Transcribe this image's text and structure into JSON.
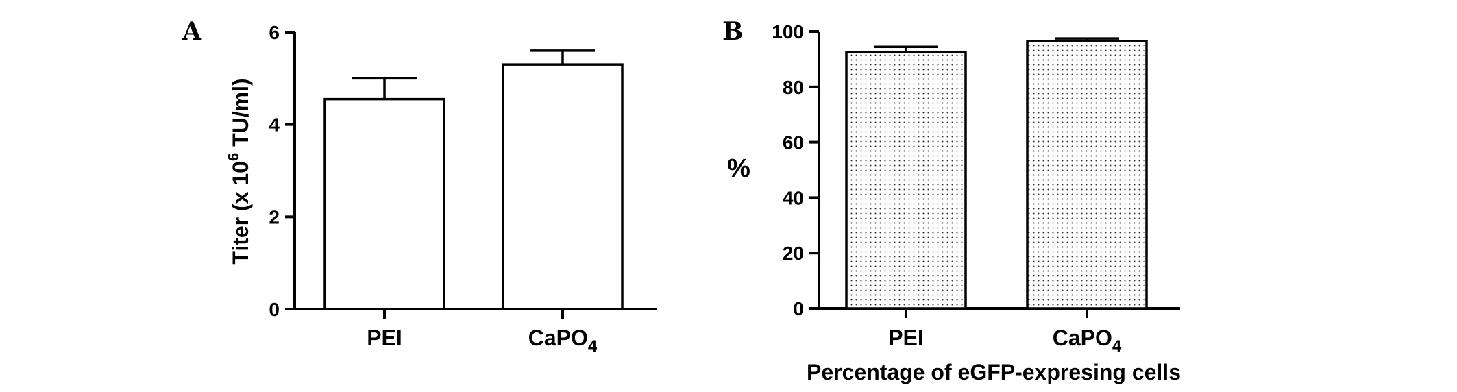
{
  "chart_data": [
    {
      "type": "bar",
      "panel_label": "A",
      "categories": [
        "PEI",
        "CaPO"
      ],
      "category_subscripts": [
        "",
        "4"
      ],
      "values": [
        4.55,
        5.3
      ],
      "errors": [
        0.45,
        0.3
      ],
      "ylabel_parts": [
        "Titer (x 10",
        "6",
        " TU/ml)"
      ],
      "ylim": [
        0,
        6
      ],
      "yticks": [
        "0",
        "2",
        "4",
        "6"
      ],
      "xlabel": "",
      "bar_fill": "#ffffff",
      "grid": false,
      "legend": "none"
    },
    {
      "type": "bar",
      "panel_label": "B",
      "categories": [
        "PEI",
        "CaPO"
      ],
      "category_subscripts": [
        "",
        "4"
      ],
      "values": [
        92.5,
        96.5
      ],
      "errors": [
        2.0,
        1.0
      ],
      "ylabel": "%",
      "ylim": [
        0,
        100
      ],
      "yticks": [
        "0",
        "20",
        "40",
        "60",
        "80",
        "100"
      ],
      "xlabel": "Percentage of eGFP-expresing cells",
      "bar_fill": "dotted",
      "grid": false,
      "legend": "none"
    }
  ]
}
